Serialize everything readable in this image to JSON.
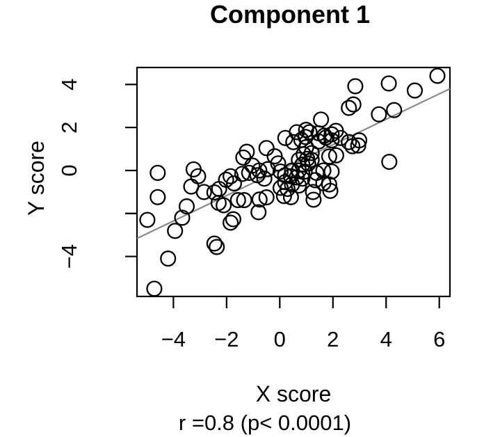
{
  "title": "Component 1",
  "colors": {
    "background": "#ffffff",
    "foreground": "#000000",
    "regression_line": "#8a8a8a",
    "marker_stroke": "#000000"
  },
  "chart_data": {
    "type": "scatter",
    "title": "Component 1",
    "xlabel": "X score",
    "ylabel": "Y score",
    "subtitle": "r =0.8 (p< 0.0001)",
    "xlim": [
      -5.37,
      6.4
    ],
    "ylim": [
      -5.86,
      4.79
    ],
    "x_ticks": [
      -4,
      -2,
      0,
      2,
      4,
      6
    ],
    "x_tick_labels": [
      "−4",
      "−2",
      "0",
      "2",
      "4",
      "6"
    ],
    "y_ticks": [
      4,
      2,
      0,
      -2,
      -4
    ],
    "y_tick_labels": [
      "4",
      "2",
      "0",
      "",
      "−4"
    ],
    "grid": false,
    "legend": null,
    "marker": "open-circle",
    "regression_line": {
      "x1": -5.37,
      "y1": -3.16,
      "x2": 6.4,
      "y2": 3.8,
      "slope": 0.59,
      "intercept": 0.0,
      "color": "#8a8a8a"
    },
    "points": [
      [
        -4.72,
        -5.5
      ],
      [
        -4.2,
        -4.1
      ],
      [
        -4.98,
        -2.3
      ],
      [
        -4.59,
        -1.24
      ],
      [
        -4.59,
        -0.11
      ],
      [
        -3.94,
        -2.81
      ],
      [
        -3.67,
        -2.2
      ],
      [
        -3.5,
        -1.67
      ],
      [
        -3.33,
        -0.75
      ],
      [
        -3.24,
        0.05
      ],
      [
        -3.07,
        -0.27
      ],
      [
        -2.85,
        -1.0
      ],
      [
        -2.46,
        -1.02
      ],
      [
        -2.28,
        -0.86
      ],
      [
        -2.02,
        -0.43
      ],
      [
        -1.85,
        -0.27
      ],
      [
        -2.3,
        -1.51
      ],
      [
        -2.11,
        -1.62
      ],
      [
        -1.75,
        -2.27
      ],
      [
        -1.85,
        -2.43
      ],
      [
        -2.46,
        -3.4
      ],
      [
        -2.37,
        -3.56
      ],
      [
        -1.57,
        -1.38
      ],
      [
        -1.34,
        -1.38
      ],
      [
        -1.72,
        -0.6
      ],
      [
        -1.41,
        -0.16
      ],
      [
        -1.15,
        -0.11
      ],
      [
        -0.84,
        -0.22
      ],
      [
        -0.58,
        -0.38
      ],
      [
        -0.76,
        -1.35
      ],
      [
        -0.5,
        -1.25
      ],
      [
        -0.8,
        -1.94
      ],
      [
        -1.03,
        0.23
      ],
      [
        -0.77,
        0.0
      ],
      [
        -0.45,
        0.06
      ],
      [
        -1.37,
        0.6
      ],
      [
        -1.24,
        0.87
      ],
      [
        -0.5,
        1.04
      ],
      [
        -0.19,
        0.66
      ],
      [
        -0.06,
        0.33
      ],
      [
        0.21,
        1.51
      ],
      [
        0.51,
        1.32
      ],
      [
        0.81,
        1.42
      ],
      [
        0.97,
        1.56
      ],
      [
        0.72,
        0.49
      ],
      [
        0.9,
        0.75
      ],
      [
        1.03,
        0.54
      ],
      [
        0.85,
        0.27
      ],
      [
        1.07,
        0.32
      ],
      [
        1.2,
        0.49
      ],
      [
        0.46,
        0.0
      ],
      [
        0.72,
        0.0
      ],
      [
        0.94,
        -0.05
      ],
      [
        0.2,
        -0.22
      ],
      [
        0.42,
        -0.27
      ],
      [
        0.64,
        -0.32
      ],
      [
        0.85,
        -0.38
      ],
      [
        0.03,
        -0.05
      ],
      [
        0.2,
        -0.54
      ],
      [
        0.46,
        -0.65
      ],
      [
        0.03,
        -0.81
      ],
      [
        0.29,
        -0.86
      ],
      [
        0.72,
        -0.7
      ],
      [
        0.16,
        -1.19
      ],
      [
        0.42,
        -1.24
      ],
      [
        1.25,
        -1.0
      ],
      [
        1.27,
        -1.36
      ],
      [
        1.33,
        -0.45
      ],
      [
        1.38,
        -0.11
      ],
      [
        1.64,
        -0.59
      ],
      [
        1.86,
        -0.65
      ],
      [
        1.64,
        0.0
      ],
      [
        1.95,
        -0.05
      ],
      [
        1.86,
        0.65
      ],
      [
        2.12,
        0.7
      ],
      [
        1.9,
        -0.95
      ],
      [
        0.99,
        1.08
      ],
      [
        1.2,
        0.81
      ],
      [
        1.46,
        1.35
      ],
      [
        1.73,
        1.53
      ],
      [
        1.95,
        1.4
      ],
      [
        2.29,
        1.51
      ],
      [
        2.6,
        1.32
      ],
      [
        2.73,
        1.13
      ],
      [
        2.95,
        1.16
      ],
      [
        2.99,
        1.4
      ],
      [
        0.64,
        1.78
      ],
      [
        0.99,
        1.89
      ],
      [
        1.12,
        1.78
      ],
      [
        1.46,
        1.73
      ],
      [
        1.68,
        1.62
      ],
      [
        1.95,
        1.68
      ],
      [
        2.11,
        1.84
      ],
      [
        1.55,
        2.37
      ],
      [
        2.6,
        2.91
      ],
      [
        2.77,
        3.07
      ],
      [
        2.84,
        3.92
      ],
      [
        4.1,
        4.05
      ],
      [
        5.08,
        3.72
      ],
      [
        5.93,
        4.4
      ],
      [
        3.73,
        2.61
      ],
      [
        4.3,
        2.81
      ],
      [
        4.12,
        0.4
      ]
    ]
  }
}
